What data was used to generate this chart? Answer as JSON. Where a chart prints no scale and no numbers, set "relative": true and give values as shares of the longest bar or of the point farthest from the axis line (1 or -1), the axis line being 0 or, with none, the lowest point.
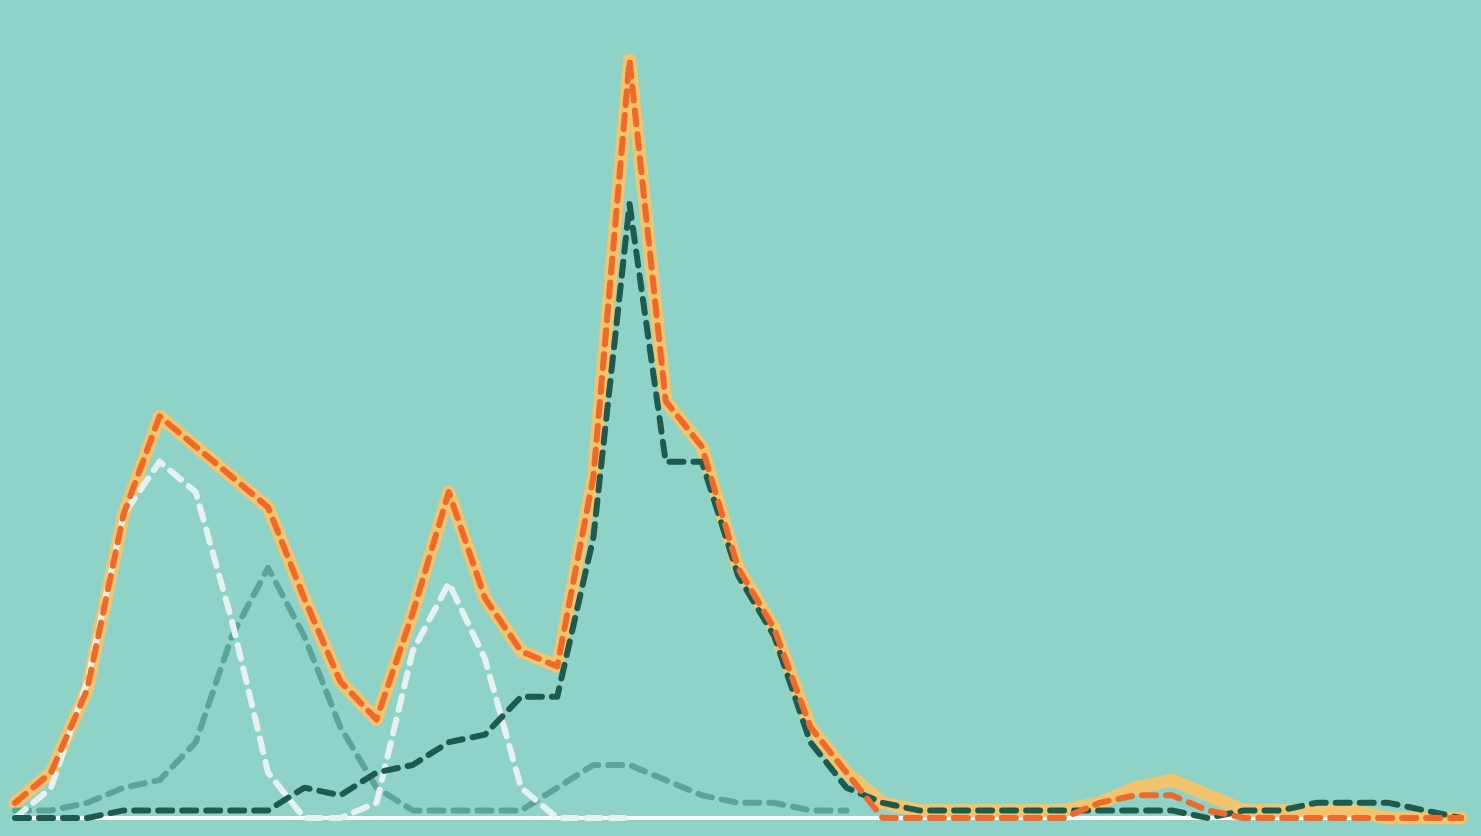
{
  "chart_data": {
    "type": "line",
    "relative": true,
    "grid": false,
    "marker": "none",
    "categories": [
      null,
      null,
      null,
      null,
      null,
      null,
      null,
      null,
      null,
      null,
      null,
      null,
      null,
      null,
      null,
      null,
      null,
      null,
      null,
      null,
      null,
      null,
      null,
      null,
      null,
      null,
      null,
      null,
      null,
      null,
      null,
      null,
      null,
      null,
      null,
      null,
      null,
      null,
      null,
      null,
      null
    ],
    "series": [
      {
        "color": "#f2c46d",
        "line_style": "solid",
        "values": [
          0.02,
          0.06,
          0.17,
          0.4,
          0.53,
          0.49,
          0.45,
          0.41,
          0.29,
          0.18,
          0.13,
          0.27,
          0.43,
          0.29,
          0.22,
          0.2,
          0.45,
          1,
          0.55,
          0.49,
          0.33,
          0.25,
          0.12,
          0.06,
          0.02,
          0.01,
          0.01,
          0.01,
          0.01,
          0.01,
          0.02,
          0.04,
          0.05,
          0.03,
          0.01,
          0.01,
          0.01,
          0.01,
          0,
          0,
          0
        ]
      },
      {
        "color": "#5aa597",
        "line_style": "dashed",
        "values": [
          0.01,
          0.01,
          0.02,
          0.04,
          0.05,
          0.1,
          0.24,
          0.33,
          0.24,
          0.12,
          0.04,
          0.01,
          0.01,
          0.01,
          0.01,
          0.04,
          0.07,
          0.07,
          0.05,
          0.03,
          0.02,
          0.02,
          0.01,
          0.01,
          null,
          null,
          null,
          null,
          null,
          null,
          null,
          null,
          null,
          null,
          null,
          null,
          null,
          null,
          null,
          null,
          null
        ]
      },
      {
        "color": "#e6f2ef",
        "line_style": "dashed",
        "values": [
          0,
          0.04,
          0.18,
          0.4,
          0.47,
          0.43,
          0.26,
          0.06,
          0,
          0,
          0.02,
          0.22,
          0.31,
          0.21,
          0.04,
          0,
          0,
          0,
          null,
          null,
          null,
          null,
          null,
          null,
          null,
          null,
          null,
          null,
          null,
          null,
          null,
          null,
          null,
          null,
          null,
          null,
          null,
          null,
          null,
          null,
          null
        ]
      },
      {
        "color": "#1e5a4e",
        "line_style": "dashed",
        "values": [
          0,
          0,
          0,
          0.01,
          0.01,
          0.01,
          0.01,
          0.01,
          0.04,
          0.03,
          0.06,
          0.07,
          0.1,
          0.11,
          0.16,
          0.16,
          0.37,
          0.81,
          0.47,
          0.47,
          0.32,
          0.24,
          0.1,
          0.04,
          0.02,
          0.01,
          0.01,
          0.01,
          0.01,
          0.01,
          0.01,
          0.01,
          0.01,
          0,
          0.01,
          0.01,
          0.02,
          0.02,
          0.02,
          0.01,
          0
        ]
      },
      {
        "color": "#ee6a2c",
        "line_style": "dashed",
        "values": [
          0.02,
          0.06,
          0.17,
          0.4,
          0.53,
          0.49,
          0.45,
          0.41,
          0.29,
          0.18,
          0.13,
          0.27,
          0.43,
          0.29,
          0.22,
          0.2,
          0.45,
          1,
          0.55,
          0.49,
          0.33,
          0.25,
          0.12,
          0.06,
          0,
          0,
          0,
          0,
          0,
          0,
          0.02,
          0.03,
          0.03,
          0.01,
          0,
          0,
          0,
          0,
          0,
          0,
          0
        ]
      }
    ]
  }
}
